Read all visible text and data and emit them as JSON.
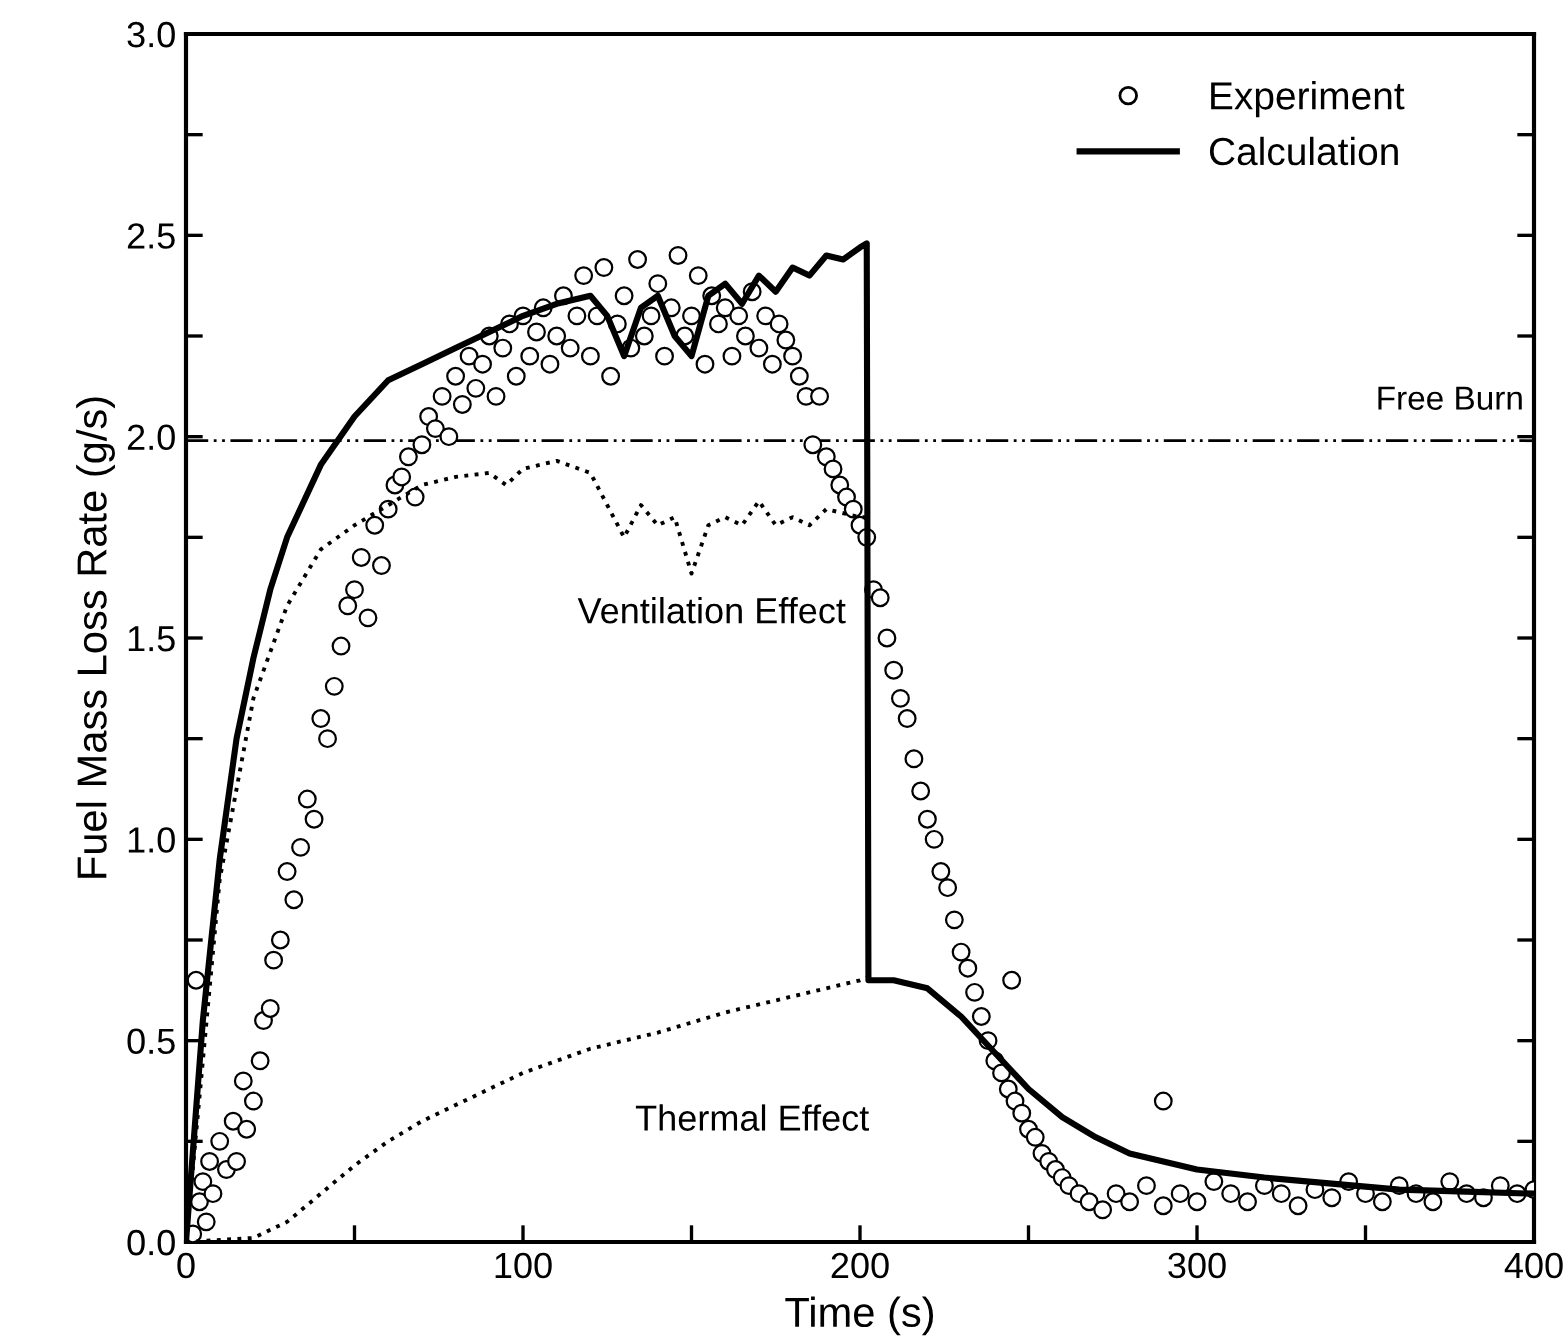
{
  "chart_data": {
    "type": "line",
    "xlabel": "Time (s)",
    "ylabel": "Fuel Mass Loss Rate (g/s)",
    "xlim": [
      0,
      400
    ],
    "ylim": [
      0,
      3.0
    ],
    "xticks": [
      0,
      {
        "value": 50,
        "label": null
      },
      100,
      {
        "value": 150,
        "label": null
      },
      200,
      {
        "value": 250,
        "label": null
      },
      300,
      {
        "value": 350,
        "label": null
      },
      400
    ],
    "yticks": [
      {
        "value": 0,
        "label": "0.0"
      },
      {
        "value": 0.25,
        "label": null
      },
      0.5,
      {
        "value": 0.75,
        "label": null
      },
      {
        "value": 1,
        "label": "1.0"
      },
      {
        "value": 1.25,
        "label": null
      },
      1.5,
      {
        "value": 1.75,
        "label": null
      },
      {
        "value": 2,
        "label": "2.0"
      },
      {
        "value": 2.25,
        "label": null
      },
      2.5,
      {
        "value": 2.75,
        "label": null
      },
      {
        "value": 3,
        "label": "3.0"
      }
    ],
    "grid": false,
    "legend": "top right",
    "series": [
      {
        "name": "Experiment",
        "type": "scatter",
        "marker": "circle",
        "color": "#000000",
        "x": [
          2,
          3,
          4,
          5,
          6,
          7,
          8,
          10,
          12,
          14,
          15,
          17,
          18,
          20,
          22,
          23,
          25,
          26,
          28,
          30,
          32,
          34,
          36,
          38,
          40,
          42,
          44,
          46,
          48,
          50,
          52,
          54,
          56,
          58,
          60,
          62,
          64,
          66,
          68,
          70,
          72,
          74,
          76,
          78,
          80,
          82,
          84,
          86,
          88,
          90,
          92,
          94,
          96,
          98,
          100,
          102,
          104,
          106,
          108,
          110,
          112,
          114,
          116,
          118,
          120,
          122,
          124,
          126,
          128,
          130,
          132,
          134,
          136,
          138,
          140,
          142,
          144,
          146,
          148,
          150,
          152,
          154,
          156,
          158,
          160,
          162,
          164,
          166,
          168,
          170,
          172,
          174,
          176,
          178,
          180,
          182,
          184,
          186,
          188,
          190,
          192,
          194,
          196,
          198,
          200,
          202,
          204,
          206,
          208,
          210,
          212,
          214,
          216,
          218,
          220,
          222,
          224,
          226,
          228,
          230,
          232,
          234,
          236,
          238,
          240,
          242,
          244,
          245,
          246,
          248,
          250,
          252,
          254,
          256,
          258,
          260,
          262,
          265,
          268,
          272,
          276,
          280,
          285,
          290,
          290,
          295,
          300,
          305,
          310,
          315,
          320,
          325,
          330,
          335,
          340,
          345,
          350,
          355,
          360,
          365,
          370,
          375,
          380,
          385,
          390,
          395,
          400
        ],
        "values": [
          0.02,
          0.65,
          0.1,
          0.15,
          0.05,
          0.2,
          0.12,
          0.25,
          0.18,
          0.3,
          0.2,
          0.4,
          0.28,
          0.35,
          0.45,
          0.55,
          0.58,
          0.7,
          0.75,
          0.92,
          0.85,
          0.98,
          1.1,
          1.05,
          1.3,
          1.25,
          1.38,
          1.48,
          1.58,
          1.62,
          1.7,
          1.55,
          1.78,
          1.68,
          1.82,
          1.88,
          1.9,
          1.95,
          1.85,
          1.98,
          2.05,
          2.02,
          2.1,
          2.0,
          2.15,
          2.08,
          2.2,
          2.12,
          2.18,
          2.25,
          2.1,
          2.22,
          2.28,
          2.15,
          2.3,
          2.2,
          2.26,
          2.32,
          2.18,
          2.25,
          2.35,
          2.22,
          2.3,
          2.4,
          2.2,
          2.3,
          2.42,
          2.15,
          2.28,
          2.35,
          2.22,
          2.44,
          2.25,
          2.3,
          2.38,
          2.2,
          2.32,
          2.45,
          2.25,
          2.3,
          2.4,
          2.18,
          2.35,
          2.28,
          2.32,
          2.2,
          2.3,
          2.25,
          2.36,
          2.22,
          2.3,
          2.18,
          2.28,
          2.24,
          2.2,
          2.15,
          2.1,
          1.98,
          2.1,
          1.95,
          1.92,
          1.88,
          1.85,
          1.82,
          1.78,
          1.75,
          1.62,
          1.6,
          1.5,
          1.42,
          1.35,
          1.3,
          1.2,
          1.12,
          1.05,
          1.0,
          0.92,
          0.88,
          0.8,
          0.72,
          0.68,
          0.62,
          0.56,
          0.5,
          0.45,
          0.42,
          0.38,
          0.65,
          0.35,
          0.32,
          0.28,
          0.26,
          0.22,
          0.2,
          0.18,
          0.16,
          0.14,
          0.12,
          0.1,
          0.08,
          0.12,
          0.1,
          0.14,
          0.09,
          0.35,
          0.12,
          0.1,
          0.15,
          0.12,
          0.1,
          0.14,
          0.12,
          0.09,
          0.13,
          0.11,
          0.15,
          0.12,
          0.1,
          0.14,
          0.12,
          0.1,
          0.15,
          0.12,
          0.11,
          0.14,
          0.12,
          0.13
        ]
      },
      {
        "name": "Calculation",
        "line_style": "solid",
        "color": "#000000",
        "x": [
          0,
          5,
          10,
          15,
          20,
          25,
          30,
          40,
          50,
          60,
          70,
          80,
          90,
          100,
          110,
          120,
          125,
          130,
          135,
          140,
          145,
          150,
          155,
          160,
          165,
          170,
          175,
          180,
          185,
          190,
          195,
          200,
          202,
          202.5,
          210,
          220,
          230,
          240,
          250,
          260,
          270,
          280,
          290,
          300,
          320,
          340,
          360,
          380,
          400
        ],
        "values": [
          0,
          0.55,
          0.95,
          1.25,
          1.45,
          1.62,
          1.75,
          1.93,
          2.05,
          2.14,
          2.18,
          2.22,
          2.26,
          2.3,
          2.33,
          2.35,
          2.3,
          2.2,
          2.32,
          2.35,
          2.25,
          2.2,
          2.35,
          2.38,
          2.33,
          2.4,
          2.36,
          2.42,
          2.4,
          2.45,
          2.44,
          2.47,
          2.48,
          0.65,
          0.65,
          0.63,
          0.56,
          0.47,
          0.38,
          0.31,
          0.26,
          0.22,
          0.2,
          0.18,
          0.16,
          0.145,
          0.13,
          0.125,
          0.12
        ]
      },
      {
        "line_style": "dotted",
        "color": "#000000",
        "x": [
          0,
          10,
          20,
          30,
          40,
          50,
          60,
          70,
          80,
          90,
          95,
          100,
          110,
          120,
          125,
          130,
          135,
          140,
          145,
          150,
          155,
          160,
          165,
          170,
          175,
          180,
          185,
          190,
          200,
          203
        ],
        "values": [
          0,
          0.9,
          1.35,
          1.58,
          1.72,
          1.78,
          1.83,
          1.88,
          1.9,
          1.91,
          1.88,
          1.92,
          1.94,
          1.91,
          1.83,
          1.75,
          1.83,
          1.78,
          1.8,
          1.66,
          1.78,
          1.8,
          1.78,
          1.84,
          1.78,
          1.8,
          1.78,
          1.82,
          1.8,
          1.8
        ]
      },
      {
        "line_style": "dotted",
        "color": "#000000",
        "x": [
          0,
          20,
          30,
          40,
          50,
          60,
          70,
          80,
          100,
          120,
          140,
          160,
          180,
          200,
          203
        ],
        "values": [
          0,
          0.01,
          0.05,
          0.12,
          0.19,
          0.25,
          0.3,
          0.34,
          0.42,
          0.48,
          0.52,
          0.57,
          0.61,
          0.65,
          0.66
        ]
      }
    ],
    "ref_lines": [
      {
        "axis": "y",
        "value": 1.99,
        "label": "Free Burn",
        "color": "#000000",
        "line_style": "dashdot"
      }
    ],
    "annotations": [
      "Ventilation Effect",
      "Thermal Effect"
    ]
  }
}
